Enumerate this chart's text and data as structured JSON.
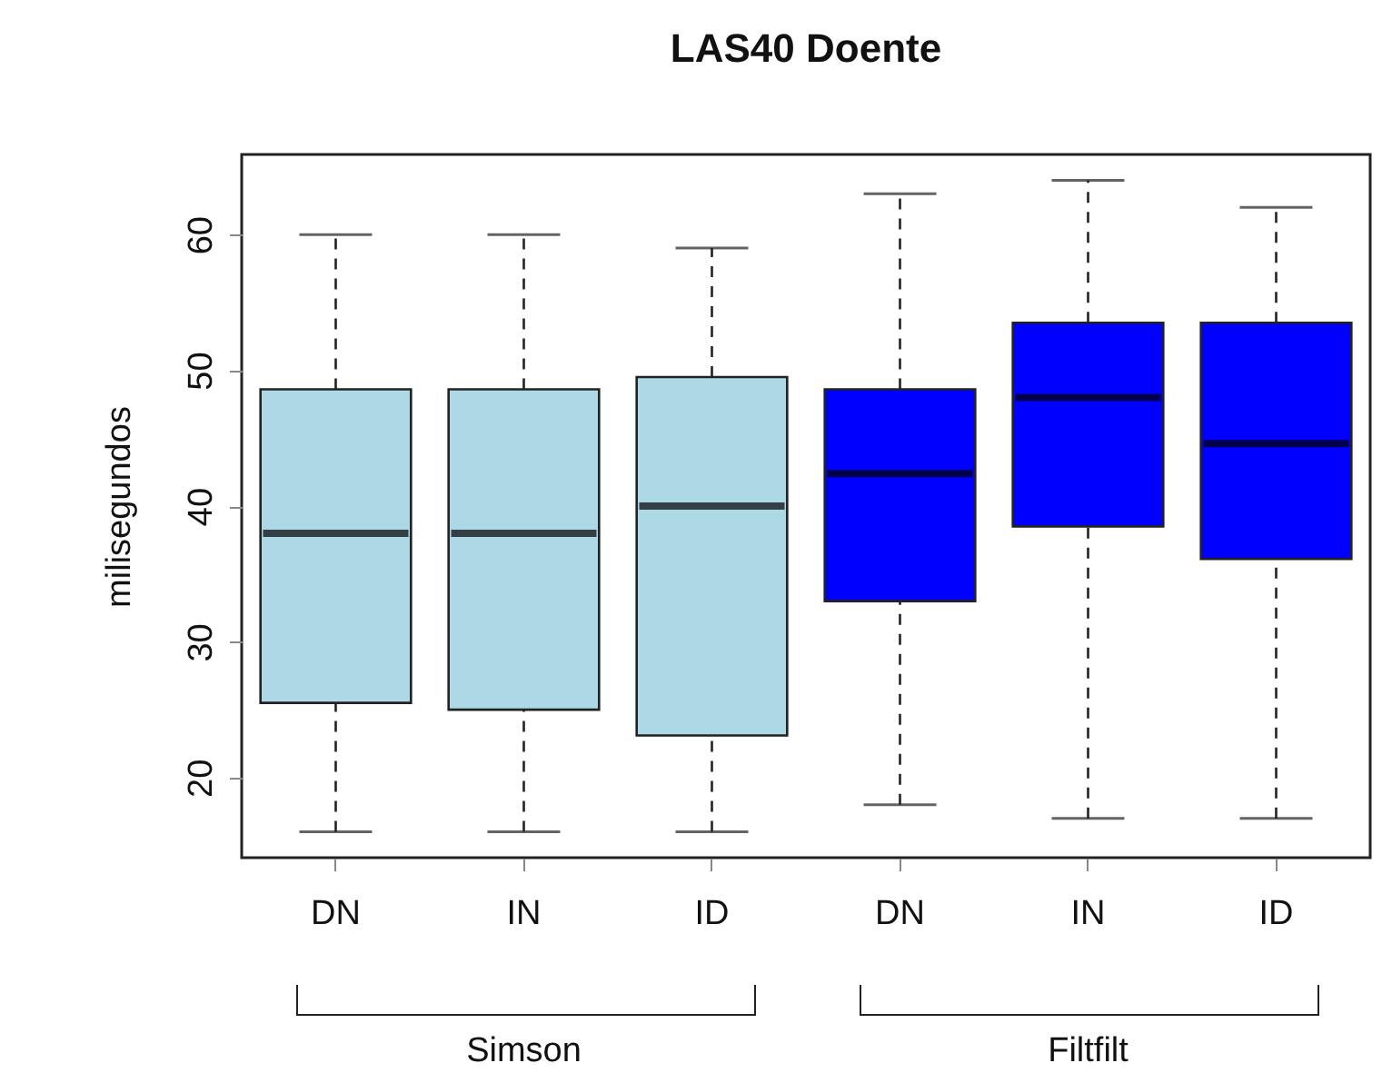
{
  "chart_data": {
    "type": "box",
    "title": "LAS40 Doente",
    "ylabel": "milisegundos",
    "categories": [
      "DN",
      "IN",
      "ID",
      "DN",
      "IN",
      "ID"
    ],
    "boxes": [
      {
        "low": 16,
        "q1": 25.5,
        "median": 38,
        "q3": 48.6,
        "high": 60
      },
      {
        "low": 16,
        "q1": 25,
        "median": 38,
        "q3": 48.6,
        "high": 60
      },
      {
        "low": 16,
        "q1": 23.1,
        "median": 40,
        "q3": 49.5,
        "high": 59
      },
      {
        "low": 18,
        "q1": 33,
        "median": 42.4,
        "q3": 48.6,
        "high": 63
      },
      {
        "low": 17,
        "q1": 38.5,
        "median": 48,
        "q3": 53.5,
        "high": 64
      },
      {
        "low": 17,
        "q1": 36.1,
        "median": 44.6,
        "q3": 53.5,
        "high": 62
      }
    ],
    "colors": [
      "#add8e6",
      "#add8e6",
      "#add8e6",
      "#0000ff",
      "#0000ff",
      "#0000ff"
    ],
    "ylim": [
      14.1,
      65.9
    ],
    "yticks": [
      20,
      30,
      40,
      50,
      60
    ],
    "annotations": [
      "Simson",
      "Filtfilt"
    ]
  }
}
